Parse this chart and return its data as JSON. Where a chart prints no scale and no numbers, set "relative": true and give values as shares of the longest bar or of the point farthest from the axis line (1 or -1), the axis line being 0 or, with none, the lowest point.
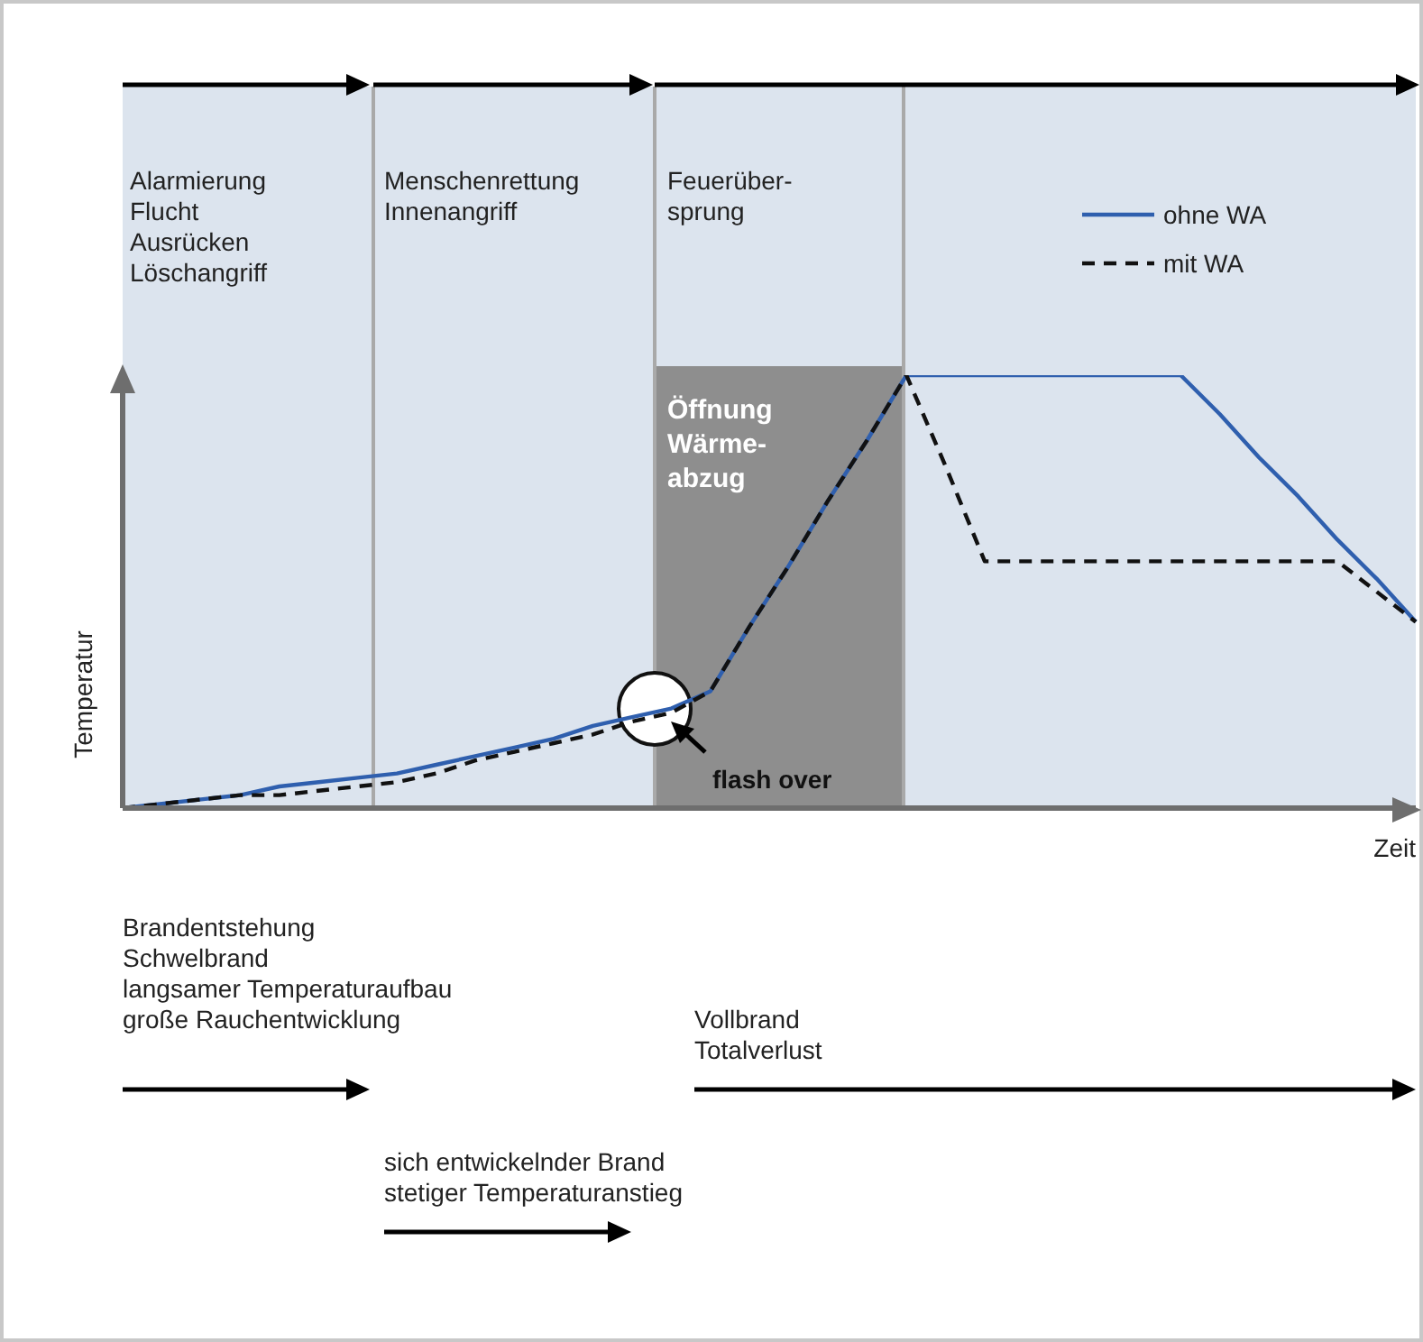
{
  "chart_data": {
    "type": "line",
    "relative": true,
    "xlabel": "Zeit",
    "ylabel": "Temperatur",
    "categories": [
      null,
      null,
      null,
      null,
      null,
      null,
      null,
      null,
      null,
      null,
      null,
      null,
      null,
      null,
      null,
      null,
      null,
      null,
      null,
      null,
      null,
      null,
      null,
      null,
      null,
      null,
      null,
      null,
      null,
      null,
      null,
      null,
      null,
      null
    ],
    "legend": "top right",
    "marker": "none",
    "series": [
      {
        "name": "ohne WA",
        "color": "#2f5fae",
        "line_style": "solid",
        "values": [
          0,
          0.01,
          0.02,
          0.03,
          0.05,
          0.06,
          0.07,
          0.08,
          0.1,
          0.12,
          0.14,
          0.16,
          0.19,
          0.21,
          0.23,
          0.27,
          0.42,
          0.56,
          0.71,
          0.85,
          1,
          1,
          1,
          1,
          1,
          1,
          1,
          1,
          0.91,
          0.81,
          0.72,
          0.62,
          0.53,
          0.43
        ]
      },
      {
        "name": "mit WA",
        "color": "#111111",
        "line_style": "dashed",
        "values": [
          0,
          0.01,
          0.02,
          0.03,
          0.03,
          0.04,
          0.05,
          0.06,
          0.08,
          0.11,
          0.13,
          0.15,
          0.17,
          0.2,
          0.22,
          0.27,
          0.42,
          0.56,
          0.71,
          0.85,
          1,
          0.79,
          0.57,
          0.57,
          0.57,
          0.57,
          0.57,
          0.57,
          0.57,
          0.57,
          0.57,
          0.57,
          0.5,
          0.43
        ]
      }
    ],
    "annotations": [
      "Alarmierung\nFlucht\nAusrücken\nLöschangriff",
      "Menschenrettung\nInnenangriff",
      "Feuerüber-\nsprung",
      "Öffnung\nWärme-\nabzug",
      "flash over",
      "Brandentstehung\nSchwelbrand\nlangsamer Temperaturaufbau\ngroße Rauchentwicklung",
      "Vollbrand\nTotalverlust",
      "sich entwickelnder Brand\nstetiger Temperaturanstieg"
    ]
  }
}
